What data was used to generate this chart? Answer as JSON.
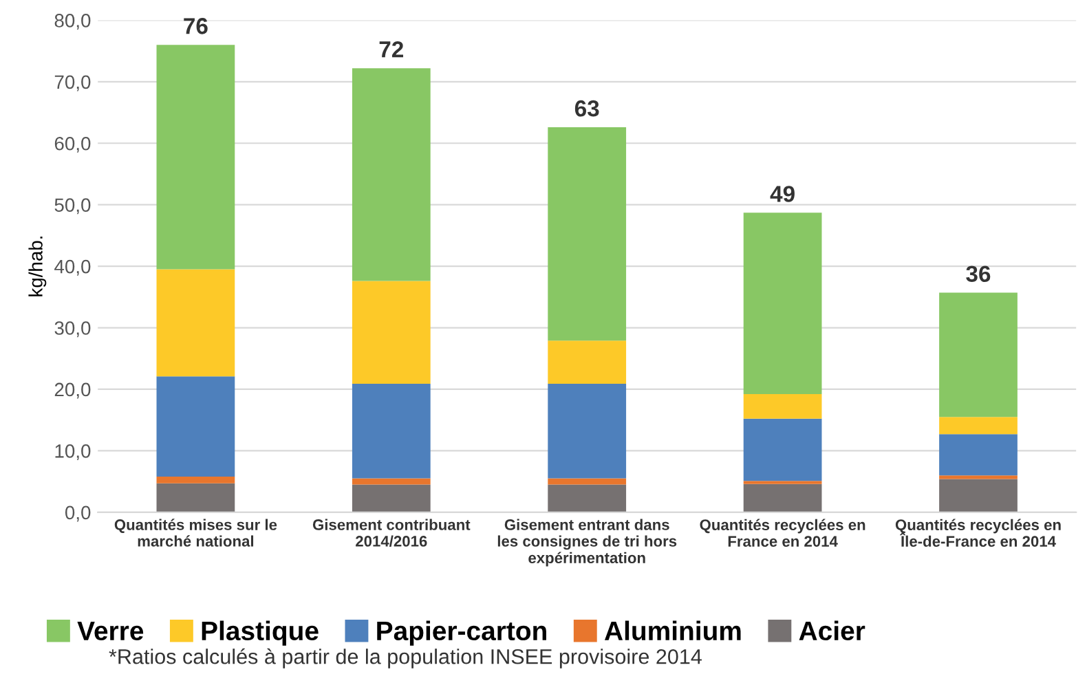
{
  "chart_data": {
    "type": "bar",
    "stacked": true,
    "ylabel": "kg/hab.",
    "categories": [
      "Quantités mises sur le\nmarché national",
      "Gisement contribuant\n2014/2016",
      "Gisement entrant dans\nles consignes de tri hors\nexpérimentation",
      "Quantités recyclées en\nFrance en 2014",
      "Quantités recyclées en\nÎle-de-France en 2014"
    ],
    "series": [
      {
        "name": "Acier",
        "color": "#767171",
        "values": [
          4.7,
          4.5,
          4.5,
          4.6,
          5.4
        ]
      },
      {
        "name": "Aluminium",
        "color": "#e8762d",
        "values": [
          1.1,
          1.0,
          1.0,
          0.5,
          0.6
        ]
      },
      {
        "name": "Papier-carton",
        "color": "#4e80bc",
        "values": [
          16.3,
          15.4,
          15.4,
          10.1,
          6.7
        ]
      },
      {
        "name": "Plastique",
        "color": "#fdc928",
        "values": [
          17.4,
          16.7,
          7.0,
          4.0,
          2.8
        ]
      },
      {
        "name": "Verre",
        "color": "#88c764",
        "values": [
          36.5,
          34.6,
          34.7,
          29.5,
          20.2
        ]
      }
    ],
    "totals": [
      "76",
      "72",
      "63",
      "49",
      "36"
    ],
    "ylim": [
      0,
      80
    ],
    "yticks": [
      {
        "value": 0,
        "label": "0,0"
      },
      {
        "value": 10,
        "label": "10,0"
      },
      {
        "value": 20,
        "label": "20,0"
      },
      {
        "value": 30,
        "label": "30,0"
      },
      {
        "value": 40,
        "label": "40,0"
      },
      {
        "value": 50,
        "label": "50,0"
      },
      {
        "value": 60,
        "label": "60,0"
      },
      {
        "value": 70,
        "label": "70,0"
      },
      {
        "value": 80,
        "label": "80,0"
      }
    ],
    "grid": "y",
    "legend": "bottom",
    "annotations": [
      "*Ratios calculés à partir de la population INSEE provisoire 2014"
    ]
  }
}
